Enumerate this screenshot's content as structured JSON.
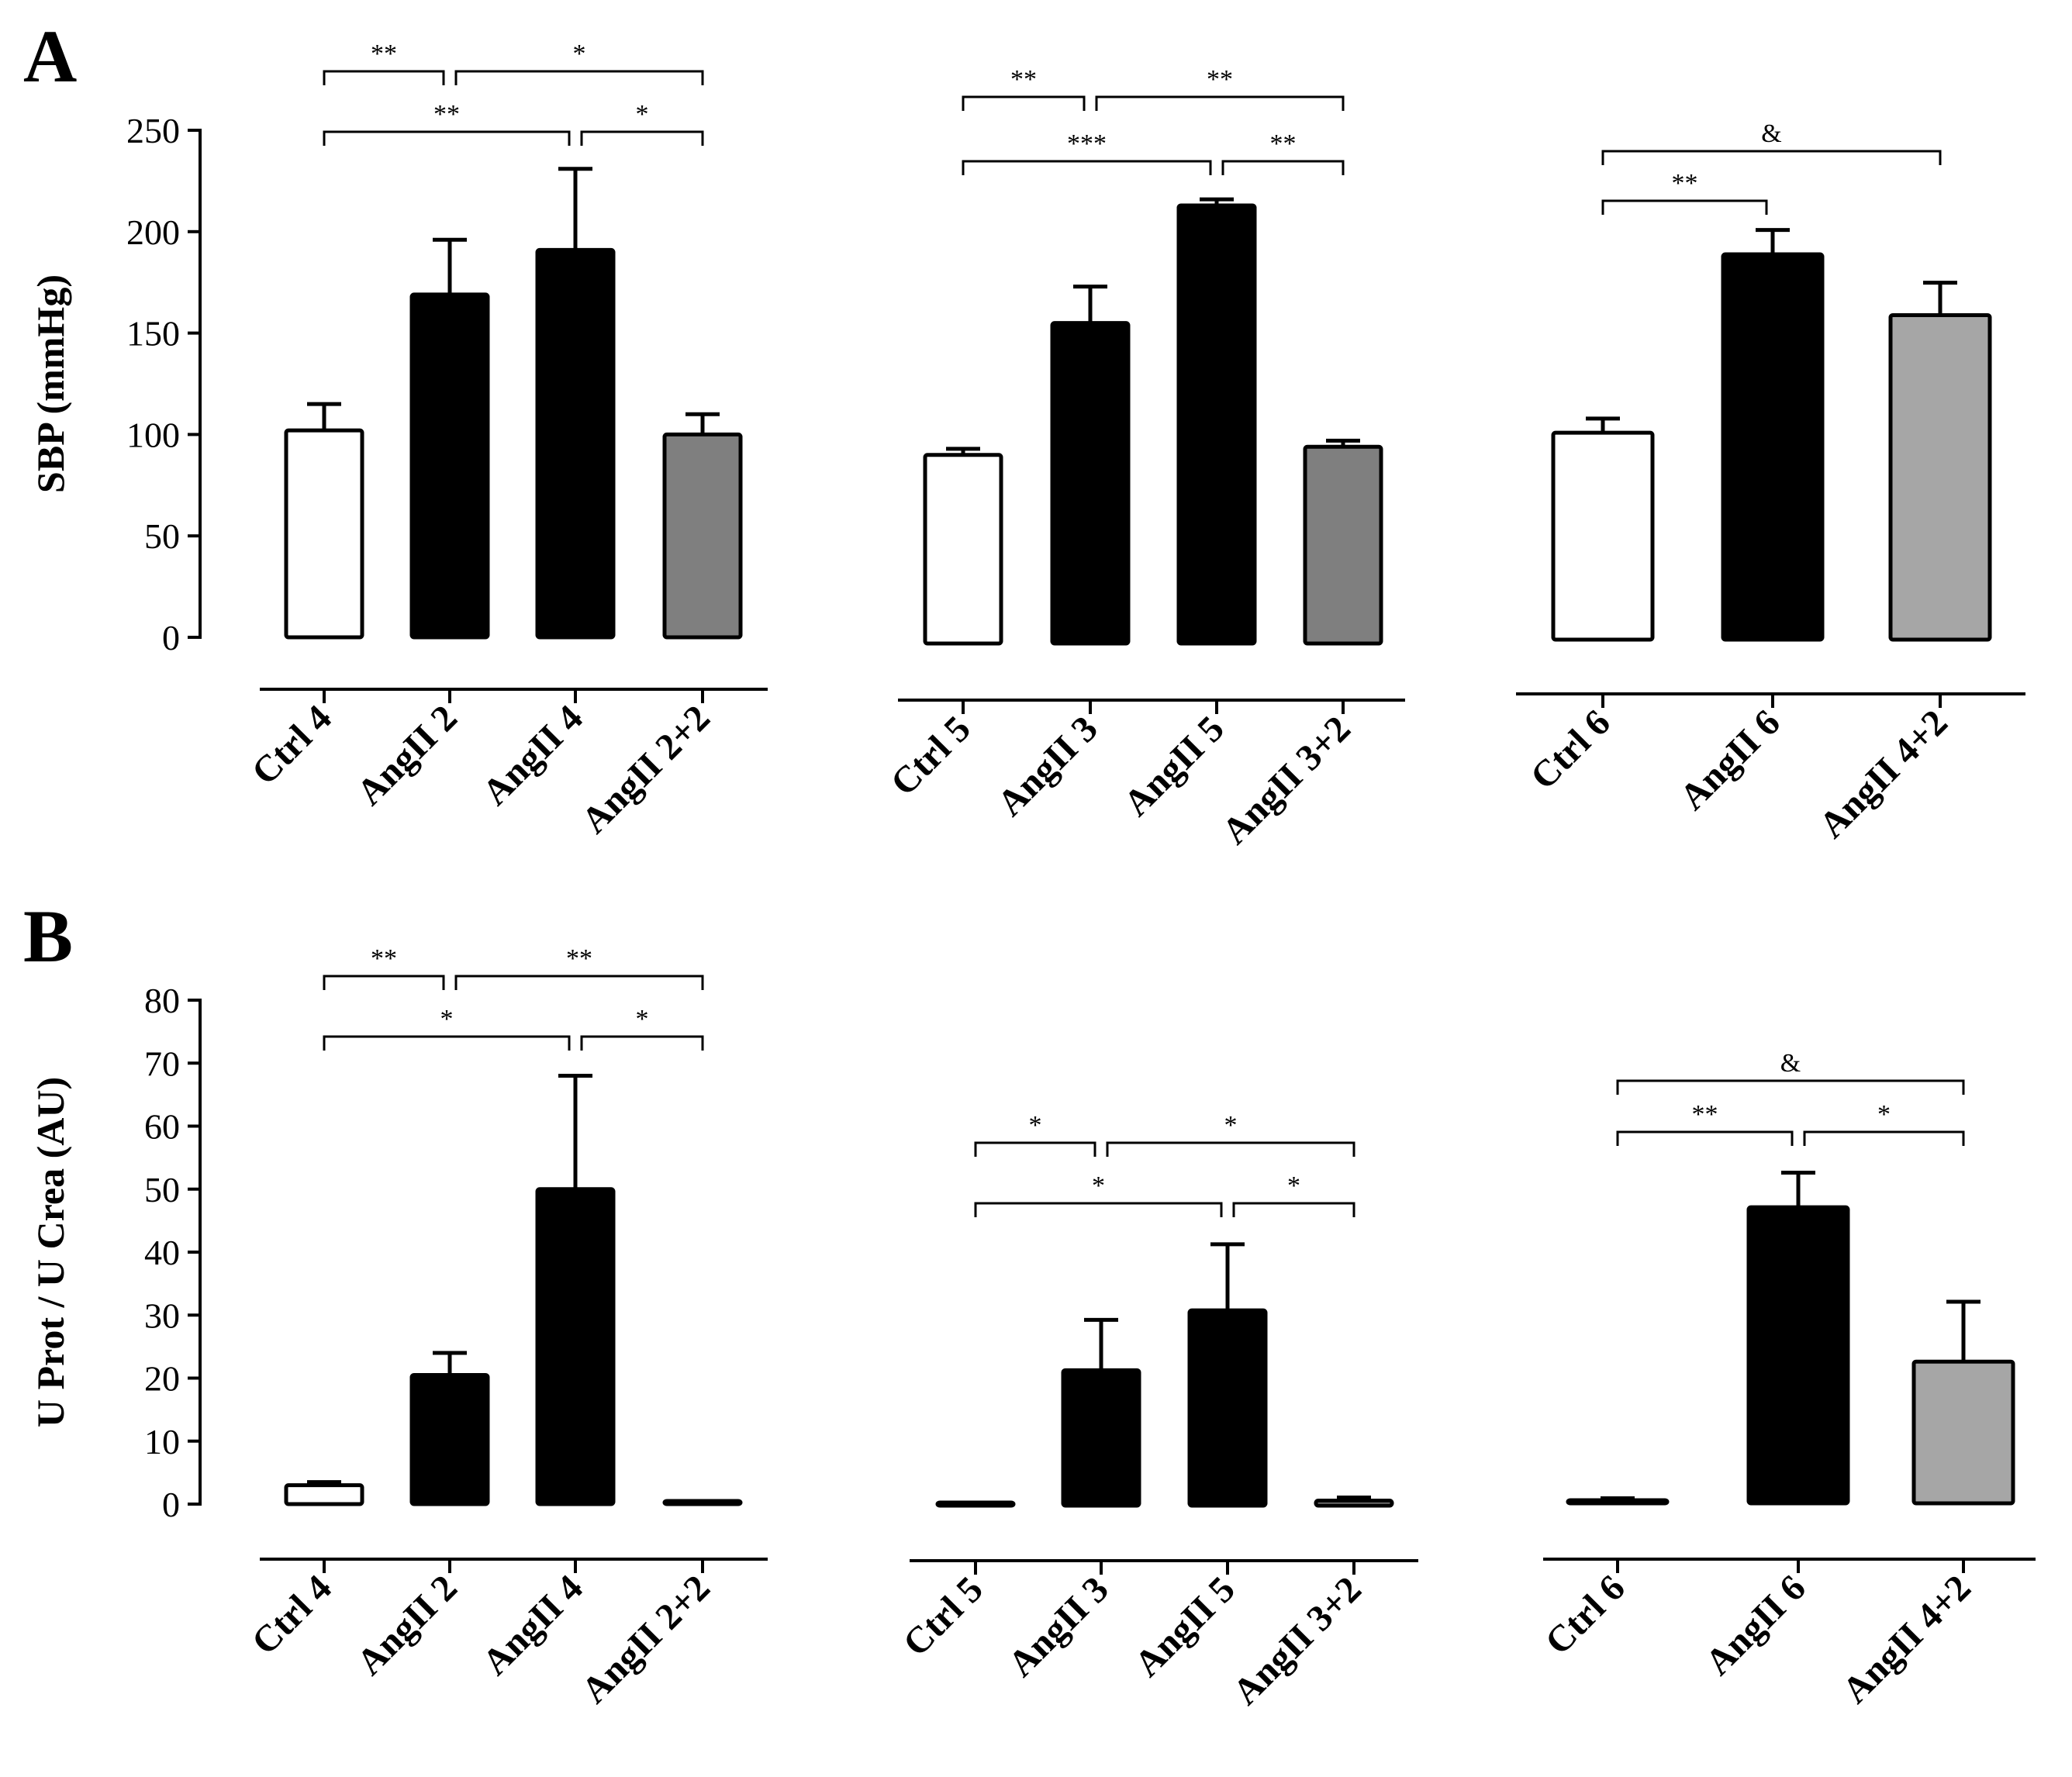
{
  "chart_data": [
    {
      "type": "bar",
      "panel_label": "A",
      "ylabel": "SBP (mmHg)",
      "ylim": [
        0,
        250
      ],
      "yticks": [
        "0",
        "50",
        "100",
        "150",
        "200",
        "250"
      ],
      "groups": [
        {
          "bars": [
            {
              "label": "Ctrl 4",
              "value": 102,
              "err": 13,
              "color": "#ffffff"
            },
            {
              "label": "AngII 2",
              "value": 169,
              "err": 27,
              "color": "#000000"
            },
            {
              "label": "AngII 4",
              "value": 191,
              "err": 40,
              "color": "#000000"
            },
            {
              "label": "AngII 2+2",
              "value": 100,
              "err": 10,
              "color": "#7f7f7f"
            }
          ],
          "sig": [
            {
              "from": 0,
              "to": 1,
              "label": "**",
              "level": 1
            },
            {
              "from": 1,
              "to": 3,
              "label": "*",
              "level": 1
            },
            {
              "from": 0,
              "to": 2,
              "label": "**",
              "level": 0
            },
            {
              "from": 2,
              "to": 3,
              "label": "*",
              "level": 0
            }
          ]
        },
        {
          "bars": [
            {
              "label": "Ctrl 5",
              "value": 93,
              "err": 3,
              "color": "#ffffff"
            },
            {
              "label": "AngII 3",
              "value": 158,
              "err": 18,
              "color": "#000000"
            },
            {
              "label": "AngII 5",
              "value": 216,
              "err": 3,
              "color": "#000000"
            },
            {
              "label": "AngII 3+2",
              "value": 97,
              "err": 3,
              "color": "#7f7f7f"
            }
          ],
          "sig": [
            {
              "from": 0,
              "to": 1,
              "label": "**",
              "level": 1
            },
            {
              "from": 1,
              "to": 3,
              "label": "**",
              "level": 1
            },
            {
              "from": 0,
              "to": 2,
              "label": "***",
              "level": 0
            },
            {
              "from": 2,
              "to": 3,
              "label": "**",
              "level": 0
            }
          ]
        },
        {
          "bars": [
            {
              "label": "Ctrl 6",
              "value": 102,
              "err": 7,
              "color": "#ffffff"
            },
            {
              "label": "AngII 6",
              "value": 190,
              "err": 12,
              "color": "#000000"
            },
            {
              "label": "AngII 4+2",
              "value": 160,
              "err": 16,
              "color": "#a6a6a6"
            }
          ],
          "sig": [
            {
              "from": 0,
              "to": 1,
              "label": "**",
              "level": 0
            },
            {
              "from": 0,
              "to": 2,
              "label": "&",
              "level": 1
            }
          ]
        }
      ]
    },
    {
      "type": "bar",
      "panel_label": "B",
      "ylabel": "U Prot / U Crea (AU)",
      "ylim": [
        0,
        80
      ],
      "yticks": [
        "0",
        "10",
        "20",
        "30",
        "40",
        "50",
        "60",
        "70",
        "80"
      ],
      "groups": [
        {
          "bars": [
            {
              "label": "Ctrl 4",
              "value": 3,
              "err": 0.5,
              "color": "#ffffff"
            },
            {
              "label": "AngII 2",
              "value": 20.5,
              "err": 3.5,
              "color": "#000000"
            },
            {
              "label": "AngII 4",
              "value": 50,
              "err": 18,
              "color": "#000000"
            },
            {
              "label": "AngII 2+2",
              "value": 0.3,
              "err": 0.2,
              "color": "#7f7f7f"
            }
          ],
          "sig": [
            {
              "from": 0,
              "to": 1,
              "label": "**",
              "level": 1
            },
            {
              "from": 1,
              "to": 3,
              "label": "**",
              "level": 1
            },
            {
              "from": 0,
              "to": 2,
              "label": "*",
              "level": 0
            },
            {
              "from": 2,
              "to": 3,
              "label": "*",
              "level": 0
            }
          ]
        },
        {
          "bars": [
            {
              "label": "Ctrl 5",
              "value": 0.3,
              "err": 0.2,
              "color": "#ffffff"
            },
            {
              "label": "AngII 3",
              "value": 21.5,
              "err": 8,
              "color": "#000000"
            },
            {
              "label": "AngII 5",
              "value": 31,
              "err": 10.5,
              "color": "#000000"
            },
            {
              "label": "AngII 3+2",
              "value": 0.8,
              "err": 0.5,
              "color": "#7f7f7f"
            }
          ],
          "sig": [
            {
              "from": 0,
              "to": 1,
              "label": "*",
              "level": 1
            },
            {
              "from": 1,
              "to": 3,
              "label": "*",
              "level": 1
            },
            {
              "from": 0,
              "to": 2,
              "label": "*",
              "level": 0
            },
            {
              "from": 2,
              "to": 3,
              "label": "*",
              "level": 0
            }
          ]
        },
        {
          "bars": [
            {
              "label": "Ctrl 6",
              "value": 0.5,
              "err": 0.3,
              "color": "#ffffff"
            },
            {
              "label": "AngII 6",
              "value": 47,
              "err": 5.5,
              "color": "#000000"
            },
            {
              "label": "AngII 4+2",
              "value": 22.5,
              "err": 9.5,
              "color": "#a6a6a6"
            }
          ],
          "sig": [
            {
              "from": 0,
              "to": 1,
              "label": "**",
              "level": 0
            },
            {
              "from": 1,
              "to": 2,
              "label": "*",
              "level": 0
            },
            {
              "from": 0,
              "to": 2,
              "label": "&",
              "level": 1
            }
          ]
        }
      ]
    }
  ]
}
